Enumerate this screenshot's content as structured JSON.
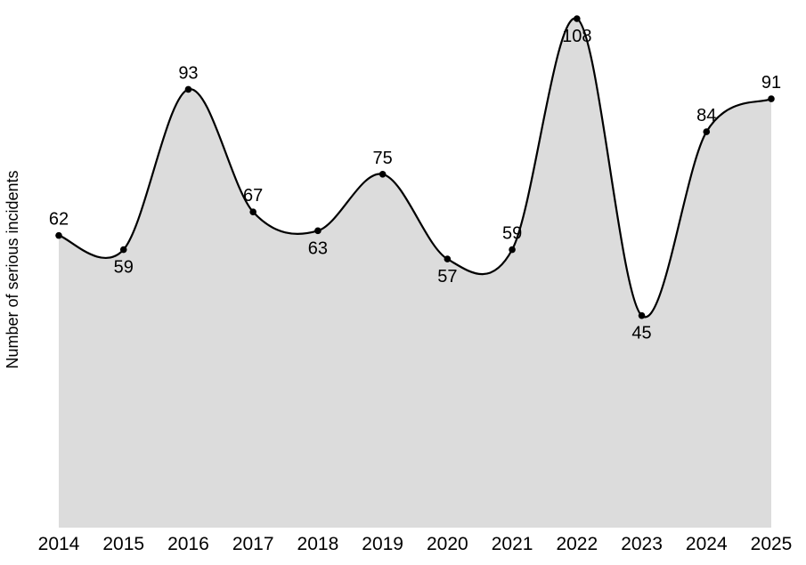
{
  "chart_data": {
    "type": "area",
    "title": "",
    "xlabel": "",
    "ylabel": "Number of serious incidents",
    "categories": [
      "2014",
      "2015",
      "2016",
      "2017",
      "2018",
      "2019",
      "2020",
      "2021",
      "2022",
      "2023",
      "2024",
      "2025"
    ],
    "values": [
      62,
      59,
      93,
      67,
      63,
      75,
      57,
      59,
      108,
      45,
      84,
      91
    ],
    "data_labels": [
      "62",
      "59",
      "93",
      "67",
      "63",
      "75",
      "57",
      "59",
      "108",
      "45",
      "84",
      "91"
    ],
    "label_positions": [
      "above",
      "below",
      "above",
      "above",
      "below",
      "above",
      "below",
      "above",
      "below",
      "below",
      "above",
      "above"
    ],
    "ylim": [
      0,
      108
    ],
    "grid": false,
    "legend_position": "none",
    "colors": {
      "fill": "#DCDCDC",
      "line": "#000000",
      "point": "#000000",
      "text": "#000000",
      "background": "#FFFFFF"
    }
  }
}
